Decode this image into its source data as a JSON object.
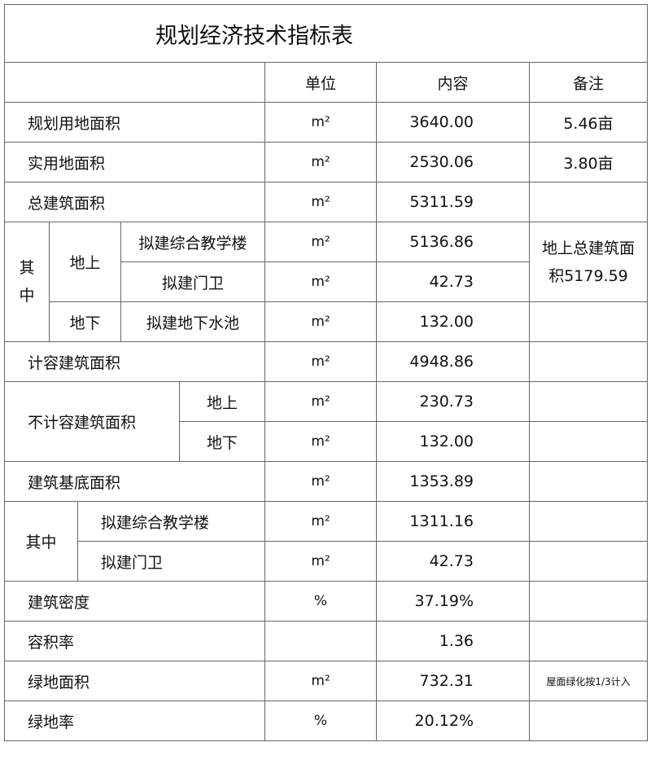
{
  "title": "规划经济技术指标表",
  "headers": {
    "unit": "单位",
    "content": "内容",
    "note": "备注"
  },
  "rows": {
    "r1": {
      "label": "规划用地面积",
      "unit": "m²",
      "value": "3640.00",
      "note": "5.46亩"
    },
    "r2": {
      "label": "实用地面积",
      "unit": "m²",
      "value": "2530.06",
      "note": "3.80亩"
    },
    "r3": {
      "label": "总建筑面积",
      "unit": "m²",
      "value": "5311.59"
    },
    "r4": {
      "group": "其中",
      "sub": "地上",
      "label": "拟建综合教学楼",
      "unit": "m²",
      "value": "5136.86",
      "note": "地上总建筑面积5179.59"
    },
    "r5": {
      "label": "拟建门卫",
      "unit": "m²",
      "value": "42.73"
    },
    "r6": {
      "sub": "地下",
      "label": "拟建地下水池",
      "unit": "m²",
      "value": "132.00"
    },
    "r7": {
      "label": "计容建筑面积",
      "unit": "m²",
      "value": "4948.86"
    },
    "r8": {
      "group": "不计容建筑面积",
      "label": "地上",
      "unit": "m²",
      "value": "230.73"
    },
    "r9": {
      "label": "地下",
      "unit": "m²",
      "value": "132.00"
    },
    "r10": {
      "label": "建筑基底面积",
      "unit": "m²",
      "value": "1353.89"
    },
    "r11": {
      "group": "其中",
      "label": "拟建综合教学楼",
      "unit": "m²",
      "value": "1311.16"
    },
    "r12": {
      "label": "拟建门卫",
      "unit": "m²",
      "value": "42.73"
    },
    "r13": {
      "label": "建筑密度",
      "unit": "%",
      "value": "37.19%"
    },
    "r14": {
      "label": "容积率",
      "unit": "",
      "value": "1.36"
    },
    "r15": {
      "label": "绿地面积",
      "unit": "m²",
      "value": "732.31",
      "note": "屋面绿化按1/3计入"
    },
    "r16": {
      "label": "绿地率",
      "unit": "%",
      "value": "20.12%"
    }
  }
}
